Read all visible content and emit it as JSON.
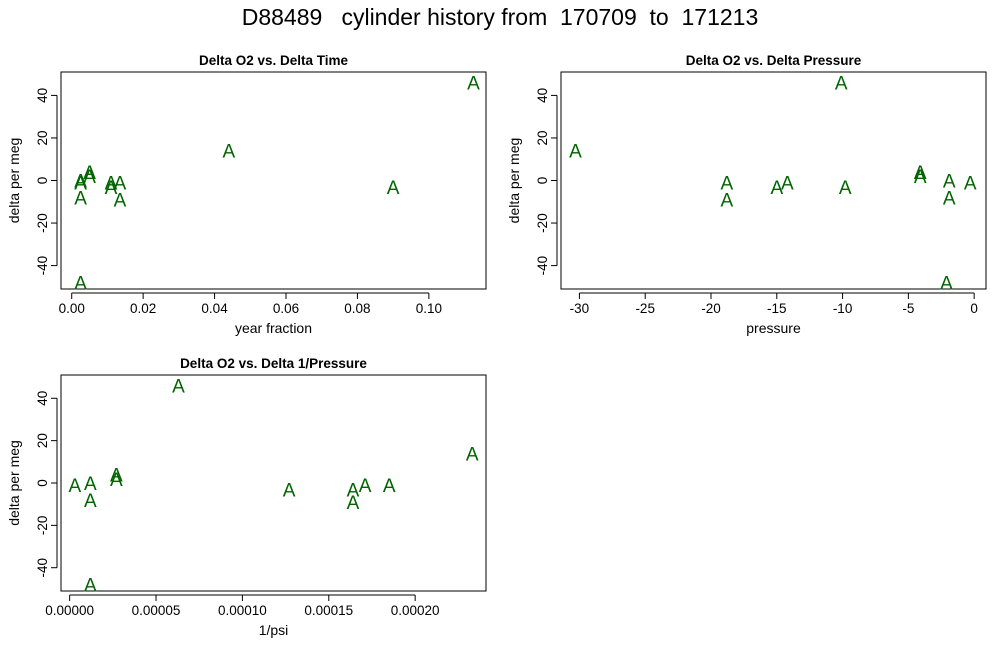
{
  "page": {
    "title": "D88489   cylinder history from  170709  to  171213"
  },
  "style": {
    "point_color": "#006400",
    "point_marker": "A",
    "axis_color": "#000000"
  },
  "chart_data": [
    {
      "type": "scatter",
      "title": "Delta O2 vs. Delta Time",
      "xlabel": "year fraction",
      "ylabel": "delta per meg",
      "xticks": [
        "0.00",
        "0.02",
        "0.04",
        "0.06",
        "0.08",
        "0.10"
      ],
      "yticks": [
        "-40",
        "-20",
        "0",
        "20",
        "40"
      ],
      "xlim": [
        -0.003,
        0.116
      ],
      "ylim": [
        -51,
        51
      ],
      "marker": "A",
      "points": [
        {
          "x": 0.0025,
          "y": 0
        },
        {
          "x": 0.0025,
          "y": -1
        },
        {
          "x": 0.0025,
          "y": -8
        },
        {
          "x": 0.0025,
          "y": -48
        },
        {
          "x": 0.005,
          "y": 2
        },
        {
          "x": 0.005,
          "y": 4
        },
        {
          "x": 0.011,
          "y": -1
        },
        {
          "x": 0.011,
          "y": -3
        },
        {
          "x": 0.0135,
          "y": -1
        },
        {
          "x": 0.0135,
          "y": -9
        },
        {
          "x": 0.044,
          "y": 14
        },
        {
          "x": 0.09,
          "y": -3
        },
        {
          "x": 0.1125,
          "y": 46
        }
      ]
    },
    {
      "type": "scatter",
      "title": "Delta O2 vs. Delta Pressure",
      "xlabel": "pressure",
      "ylabel": "delta per meg",
      "xticks": [
        "-30",
        "-25",
        "-20",
        "-15",
        "-10",
        "-5",
        "0"
      ],
      "yticks": [
        "-40",
        "-20",
        "0",
        "20",
        "40"
      ],
      "xlim": [
        -31.4,
        0.9
      ],
      "ylim": [
        -51,
        51
      ],
      "marker": "A",
      "points": [
        {
          "x": -30.3,
          "y": 14
        },
        {
          "x": -18.8,
          "y": -1
        },
        {
          "x": -18.8,
          "y": -9
        },
        {
          "x": -15,
          "y": -3
        },
        {
          "x": -14.2,
          "y": -1
        },
        {
          "x": -10.1,
          "y": 46
        },
        {
          "x": -9.8,
          "y": -3
        },
        {
          "x": -4.1,
          "y": 2
        },
        {
          "x": -4.1,
          "y": 4
        },
        {
          "x": -2.1,
          "y": -48
        },
        {
          "x": -1.9,
          "y": 0
        },
        {
          "x": -1.9,
          "y": -8
        },
        {
          "x": -0.3,
          "y": -1
        }
      ]
    },
    {
      "type": "scatter",
      "title": "Delta O2 vs. Delta 1/Pressure",
      "xlabel": "1/psi",
      "ylabel": "delta per meg",
      "xticks": [
        "0.00000",
        "0.00005",
        "0.00010",
        "0.00015",
        "0.00020"
      ],
      "yticks": [
        "-40",
        "-20",
        "0",
        "20",
        "40"
      ],
      "xlim": [
        -5e-06,
        0.000241
      ],
      "ylim": [
        -51,
        51
      ],
      "marker": "A",
      "points": [
        {
          "x": 3e-06,
          "y": -1
        },
        {
          "x": 1.2e-05,
          "y": 0
        },
        {
          "x": 1.2e-05,
          "y": -8
        },
        {
          "x": 1.2e-05,
          "y": -48
        },
        {
          "x": 2.7e-05,
          "y": 2
        },
        {
          "x": 2.7e-05,
          "y": 4
        },
        {
          "x": 6.3e-05,
          "y": 46
        },
        {
          "x": 0.000127,
          "y": -3
        },
        {
          "x": 0.000164,
          "y": -3
        },
        {
          "x": 0.000164,
          "y": -9
        },
        {
          "x": 0.000171,
          "y": -1
        },
        {
          "x": 0.000185,
          "y": -1
        },
        {
          "x": 0.000233,
          "y": 14
        }
      ]
    }
  ]
}
